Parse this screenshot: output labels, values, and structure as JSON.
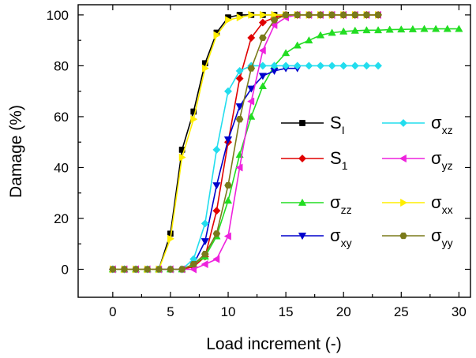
{
  "chart_data": {
    "type": "line",
    "title": "",
    "xlabel": "Load increment (-)",
    "ylabel": "Damage (%)",
    "xlim": [
      -3,
      31
    ],
    "ylim": [
      -11,
      104
    ],
    "xticks": [
      0,
      5,
      10,
      15,
      20,
      25,
      30
    ],
    "yticks": [
      0,
      20,
      40,
      60,
      80,
      100
    ],
    "grid": false,
    "legend_position": "right",
    "series": [
      {
        "id": "SI",
        "name": "S",
        "sub": "I",
        "color": "#000000",
        "marker": "square",
        "x": [
          0,
          1,
          2,
          3,
          4,
          5,
          6,
          7,
          8,
          9,
          10,
          11,
          12,
          13,
          14,
          15,
          16,
          17,
          18,
          19,
          20,
          21,
          22,
          23
        ],
        "y": [
          0,
          0,
          0,
          0,
          0,
          14,
          47,
          62,
          81,
          93,
          99,
          100,
          100,
          100,
          100,
          100,
          100,
          100,
          100,
          100,
          100,
          100,
          100,
          100
        ]
      },
      {
        "id": "S1",
        "name": "S",
        "sub": "1",
        "color": "#e00000",
        "marker": "diamond",
        "x": [
          0,
          1,
          2,
          3,
          4,
          5,
          6,
          7,
          8,
          9,
          10,
          11,
          12,
          13,
          14,
          15,
          16,
          17,
          18,
          19,
          20,
          21,
          22,
          23
        ],
        "y": [
          0,
          0,
          0,
          0,
          0,
          0,
          0,
          1,
          5,
          23,
          50,
          75,
          91,
          97,
          99,
          100,
          100,
          100,
          100,
          100,
          100,
          100,
          100,
          100
        ]
      },
      {
        "id": "szz",
        "name": "σ",
        "sub": "zz",
        "color": "#22dd22",
        "marker": "triangle-up",
        "x": [
          0,
          1,
          2,
          3,
          4,
          5,
          6,
          7,
          8,
          9,
          10,
          11,
          12,
          13,
          14,
          15,
          16,
          17,
          18,
          19,
          20,
          21,
          22,
          23,
          24,
          25,
          26,
          27,
          28,
          29,
          30
        ],
        "y": [
          0,
          0,
          0,
          0,
          0,
          0,
          0,
          2,
          5,
          13,
          27,
          45,
          60,
          72,
          80,
          85,
          88,
          90,
          92,
          93,
          93.5,
          93.8,
          94,
          94,
          94.2,
          94.3,
          94.4,
          94.5,
          94.5,
          94.5,
          94.5
        ]
      },
      {
        "id": "sxy",
        "name": "σ",
        "sub": "xy",
        "color": "#0000cc",
        "marker": "triangle-down",
        "x": [
          7,
          8,
          9,
          10,
          11,
          12,
          13,
          14,
          15,
          16
        ],
        "y": [
          2,
          11,
          33,
          51,
          64,
          71,
          76,
          78,
          79,
          79
        ]
      },
      {
        "id": "sxz",
        "name": "σ",
        "sub": "xz",
        "color": "#22ddee",
        "marker": "diamond",
        "x": [
          0,
          1,
          2,
          3,
          4,
          5,
          6,
          7,
          8,
          9,
          10,
          11,
          12,
          13,
          14,
          15,
          16,
          17,
          18,
          19,
          20,
          21,
          22,
          23
        ],
        "y": [
          0,
          0,
          0,
          0,
          0,
          0,
          0,
          4,
          18,
          47,
          70,
          78,
          80,
          80,
          80,
          80,
          80,
          80,
          80,
          80,
          80,
          80,
          80,
          80
        ]
      },
      {
        "id": "syz",
        "name": "σ",
        "sub": "yz",
        "color": "#ee22dd",
        "marker": "triangle-left",
        "x": [
          0,
          1,
          2,
          3,
          4,
          5,
          6,
          7,
          8,
          9,
          10,
          11,
          12,
          13,
          14,
          15,
          16,
          17,
          18,
          19,
          20,
          21,
          22,
          23
        ],
        "y": [
          0,
          0,
          0,
          0,
          0,
          0,
          0,
          0,
          2,
          4,
          13,
          40,
          66,
          86,
          96,
          99,
          100,
          100,
          100,
          100,
          100,
          100,
          100,
          100
        ]
      },
      {
        "id": "sxx",
        "name": "σ",
        "sub": "xx",
        "color": "#ffee00",
        "marker": "triangle-right",
        "x": [
          0,
          1,
          2,
          3,
          4,
          5,
          6,
          7,
          8,
          9,
          10,
          11,
          12,
          13,
          14,
          15,
          16,
          17,
          18,
          19,
          20,
          21,
          22,
          23
        ],
        "y": [
          0,
          0,
          0,
          0,
          0,
          12,
          44,
          59,
          79,
          92,
          98,
          99,
          100,
          100,
          100,
          100,
          100,
          100,
          100,
          100,
          100,
          100,
          100,
          100
        ]
      },
      {
        "id": "syy",
        "name": "σ",
        "sub": "yy",
        "color": "#7a7a1a",
        "marker": "hexagon",
        "x": [
          0,
          1,
          2,
          3,
          4,
          5,
          6,
          7,
          8,
          9,
          10,
          11,
          12,
          13,
          14,
          15,
          16,
          17,
          18,
          19,
          20,
          21,
          22,
          23
        ],
        "y": [
          0,
          0,
          0,
          0,
          0,
          0,
          0,
          2,
          6,
          14,
          33,
          59,
          79,
          91,
          98,
          100,
          100,
          100,
          100,
          100,
          100,
          100,
          100,
          100
        ]
      }
    ],
    "legend_left": [
      "SI",
      "S1",
      "szz",
      "sxy"
    ],
    "legend_right": [
      "sxz",
      "syz",
      "sxx",
      "syy"
    ]
  }
}
